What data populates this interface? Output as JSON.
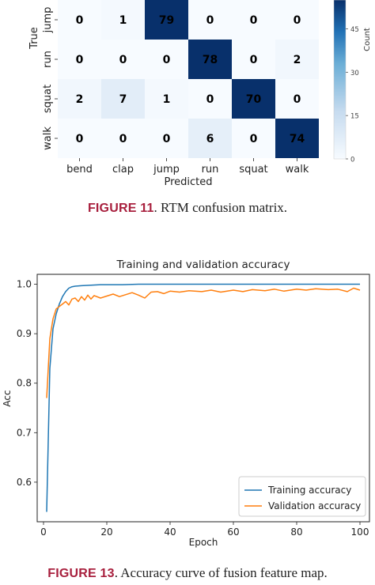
{
  "figure11": {
    "label": "FIGURE 11",
    "text": ". RTM confusion matrix."
  },
  "figure13": {
    "label": "FIGURE 13",
    "text": ". Accuracy curve of fusion feature map."
  },
  "chart_data": [
    {
      "type": "heatmap",
      "title": "",
      "xlabel": "Predicted",
      "ylabel": "True",
      "x_categories": [
        "bend",
        "clap",
        "jump",
        "run",
        "squat",
        "walk"
      ],
      "y_categories": [
        "jump",
        "run",
        "squat",
        "walk"
      ],
      "values": [
        [
          0,
          1,
          79,
          0,
          0,
          0
        ],
        [
          0,
          0,
          0,
          78,
          0,
          2
        ],
        [
          2,
          7,
          1,
          0,
          70,
          0
        ],
        [
          0,
          0,
          0,
          6,
          0,
          74
        ]
      ],
      "colorbar": {
        "label": "Count",
        "ticks": [
          0,
          15,
          30,
          45
        ],
        "range": [
          0,
          55
        ]
      },
      "colormap": [
        "#f7fbff",
        "#08306b"
      ]
    },
    {
      "type": "line",
      "title": "Training and validation accuracy",
      "xlabel": "Epoch",
      "ylabel": "Acc",
      "xlim": [
        -2,
        103
      ],
      "ylim": [
        0.52,
        1.02
      ],
      "xticks": [
        0,
        20,
        40,
        60,
        80,
        100
      ],
      "yticks": [
        0.6,
        0.7,
        0.8,
        0.9,
        1.0
      ],
      "legend": "lower-right",
      "series": [
        {
          "name": "Training accuracy",
          "color": "#1f77b4",
          "x": [
            1,
            2,
            3,
            4,
            5,
            6,
            7,
            8,
            9,
            10,
            12,
            15,
            18,
            20,
            25,
            30,
            40,
            50,
            60,
            70,
            80,
            90,
            100
          ],
          "y": [
            0.54,
            0.83,
            0.91,
            0.94,
            0.96,
            0.975,
            0.985,
            0.992,
            0.995,
            0.996,
            0.997,
            0.998,
            0.999,
            0.999,
            0.999,
            1.0,
            1.0,
            1.0,
            1.0,
            1.0,
            1.0,
            1.0,
            1.0
          ]
        },
        {
          "name": "Validation accuracy",
          "color": "#ff7f0e",
          "x": [
            1,
            2,
            3,
            4,
            5,
            6,
            7,
            8,
            9,
            10,
            11,
            12,
            13,
            14,
            15,
            16,
            18,
            20,
            22,
            24,
            26,
            28,
            30,
            32,
            34,
            36,
            38,
            40,
            43,
            46,
            50,
            53,
            56,
            60,
            63,
            66,
            70,
            73,
            76,
            80,
            83,
            86,
            90,
            93,
            96,
            98,
            100
          ],
          "y": [
            0.77,
            0.89,
            0.93,
            0.95,
            0.955,
            0.96,
            0.965,
            0.958,
            0.97,
            0.972,
            0.965,
            0.975,
            0.968,
            0.978,
            0.97,
            0.977,
            0.972,
            0.976,
            0.98,
            0.975,
            0.979,
            0.983,
            0.978,
            0.972,
            0.984,
            0.985,
            0.981,
            0.986,
            0.984,
            0.987,
            0.985,
            0.988,
            0.984,
            0.988,
            0.985,
            0.989,
            0.987,
            0.99,
            0.986,
            0.99,
            0.988,
            0.991,
            0.989,
            0.99,
            0.985,
            0.992,
            0.988
          ]
        }
      ]
    }
  ]
}
